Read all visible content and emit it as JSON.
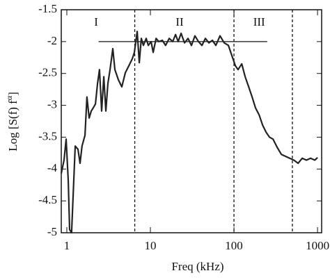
{
  "chart_data": {
    "type": "line",
    "xlabel": "Freq (kHz)",
    "ylabel_parts": [
      "Log [S(f) f",
      "α",
      "]"
    ],
    "xscale": "log",
    "xlim": [
      0.858,
      1120
    ],
    "ylim": [
      -5,
      -1.5
    ],
    "xticks": [
      1,
      10,
      100,
      1000
    ],
    "yticks": [
      -5,
      -4.5,
      -4,
      -3.5,
      -3,
      -2.5,
      -2,
      -1.5
    ],
    "vlines": [
      6.5,
      100,
      500
    ],
    "hline": {
      "y": -2,
      "x": [
        2.4,
        250
      ]
    },
    "annotations": [
      {
        "text": "I",
        "x": 2.24,
        "y": -1.71
      },
      {
        "text": "II",
        "x": 22.4,
        "y": -1.71
      },
      {
        "text": "III",
        "x": 200,
        "y": -1.71
      }
    ],
    "series": [
      {
        "color": "#222",
        "x": [
          0.858,
          0.926,
          0.981,
          1.04,
          1.08,
          1.14,
          1.26,
          1.36,
          1.44,
          1.52,
          1.65,
          1.74,
          1.85,
          1.96,
          2.07,
          2.2,
          2.33,
          2.46,
          2.61,
          2.77,
          2.93,
          3.1,
          3.29,
          3.55,
          3.76,
          4.14,
          4.55,
          5.01,
          5.52,
          6.07,
          6.43,
          6.95,
          7.36,
          7.79,
          8.25,
          8.91,
          9.44,
          10.2,
          10.8,
          11.7,
          12.6,
          13.9,
          15.2,
          16.8,
          18.5,
          20,
          21.5,
          23.3,
          25.6,
          28.2,
          31,
          34.1,
          37.6,
          41.4,
          45.5,
          50.1,
          55.2,
          60.7,
          68.1,
          76.4,
          85.8,
          94.4,
          104,
          112,
          124,
          136,
          150,
          165,
          181,
          200,
          220,
          242,
          266,
          293,
          329,
          369,
          414,
          464,
          521,
          585,
          656,
          736,
          826,
          927,
          1000
        ],
        "values": [
          -4.07,
          -3.86,
          -3.53,
          -4.18,
          -4.95,
          -5,
          -3.64,
          -3.69,
          -3.91,
          -3.64,
          -3.47,
          -2.87,
          -3.2,
          -3.09,
          -3.04,
          -2.98,
          -2.66,
          -2.44,
          -3.09,
          -2.55,
          -3.09,
          -2.66,
          -2.44,
          -2.11,
          -2.44,
          -2.6,
          -2.71,
          -2.49,
          -2.38,
          -2.27,
          -2.17,
          -1.84,
          -2.33,
          -1.95,
          -2.06,
          -1.95,
          -2.06,
          -2,
          -2.17,
          -1.95,
          -2,
          -1.98,
          -2.06,
          -1.95,
          -2,
          -1.89,
          -2,
          -1.87,
          -2.02,
          -1.95,
          -2.06,
          -1.91,
          -2,
          -2.06,
          -1.95,
          -2.02,
          -1.98,
          -2.06,
          -1.91,
          -2.02,
          -2.06,
          -2.22,
          -2.38,
          -2.44,
          -2.35,
          -2.55,
          -2.71,
          -2.87,
          -3.04,
          -3.15,
          -3.31,
          -3.42,
          -3.5,
          -3.53,
          -3.66,
          -3.77,
          -3.8,
          -3.83,
          -3.86,
          -3.91,
          -3.83,
          -3.86,
          -3.83,
          -3.86,
          -3.82
        ]
      }
    ]
  }
}
